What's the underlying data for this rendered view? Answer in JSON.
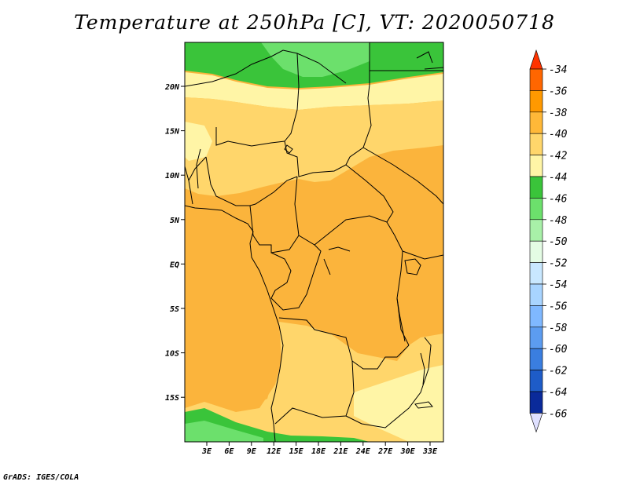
{
  "title": "Temperature at 250hPa [C], VT: 2020050718",
  "credit": "GrADS: IGES/COLA",
  "map": {
    "lat_ticks": [
      "20N",
      "15N",
      "10N",
      "5N",
      "EQ",
      "5S",
      "10S",
      "15S"
    ],
    "lon_ticks": [
      "3E",
      "6E",
      "9E",
      "12E",
      "15E",
      "18E",
      "21E",
      "24E",
      "27E",
      "30E",
      "33E"
    ]
  },
  "colorbar": {
    "labels": [
      "-34",
      "-36",
      "-38",
      "-40",
      "-42",
      "-44",
      "-46",
      "-48",
      "-50",
      "-52",
      "-54",
      "-56",
      "-58",
      "-60",
      "-62",
      "-64",
      "-66"
    ],
    "colors": [
      "#ff3300",
      "#ff6600",
      "#ff9900",
      "#ffb838",
      "#ffd66b",
      "#fff5a6",
      "#3ac43a",
      "#6ce06c",
      "#a8f0a8",
      "#e4fce4",
      "#c9e8ff",
      "#a8d4ff",
      "#7fb8ff",
      "#5c9cf0",
      "#3a7ee0",
      "#1e5cc8",
      "#0a2a9a",
      "#050562"
    ]
  }
}
